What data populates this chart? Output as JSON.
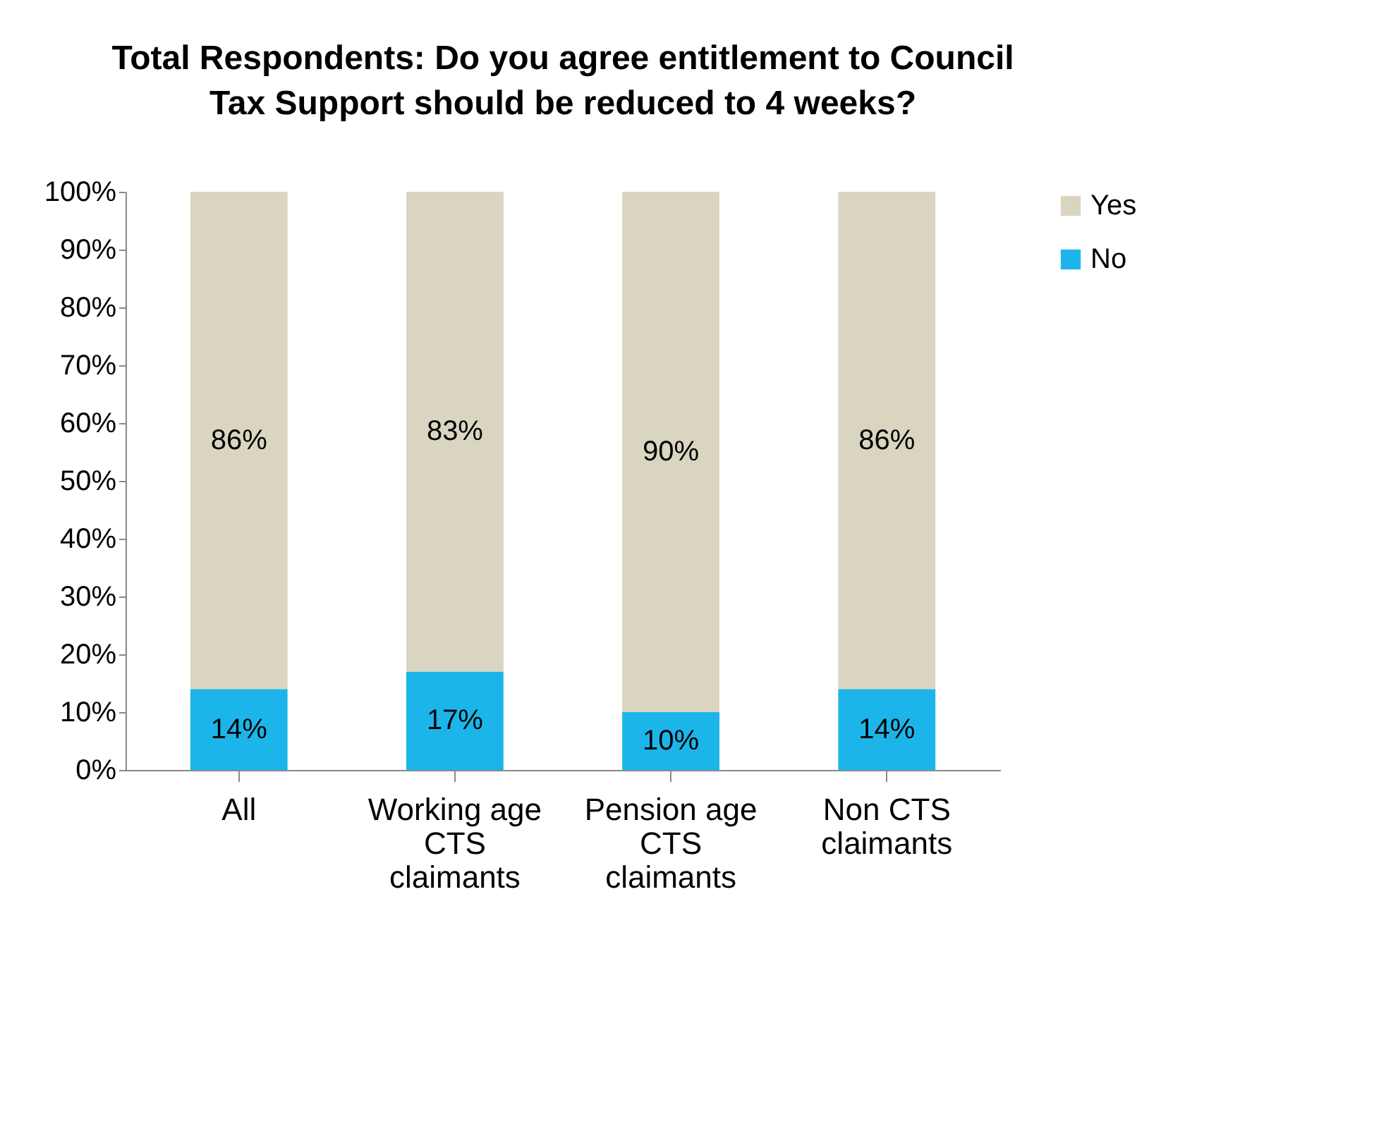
{
  "chart_data": {
    "type": "bar",
    "title": "Total Respondents: Do you agree entitlement to Council Tax Support should be reduced to 4 weeks?",
    "categories": [
      "All",
      "Working age CTS claimants",
      "Pension age CTS claimants",
      "Non CTS claimants"
    ],
    "stacked": true,
    "series": [
      {
        "name": "No",
        "color": "#1cb5ea",
        "values": [
          14,
          17,
          10,
          14
        ],
        "value_labels": [
          "14%",
          "17%",
          "10%",
          "14%"
        ]
      },
      {
        "name": "Yes",
        "color": "#d9d5c1",
        "values": [
          86,
          83,
          90,
          86
        ],
        "value_labels": [
          "86%",
          "83%",
          "90%",
          "86%"
        ]
      }
    ],
    "ylim": [
      0,
      100
    ],
    "yticks": [
      {
        "value": 0,
        "label": "0%"
      },
      {
        "value": 10,
        "label": "10%"
      },
      {
        "value": 20,
        "label": "20%"
      },
      {
        "value": 30,
        "label": "30%"
      },
      {
        "value": 40,
        "label": "40%"
      },
      {
        "value": 50,
        "label": "50%"
      },
      {
        "value": 60,
        "label": "60%"
      },
      {
        "value": 70,
        "label": "70%"
      },
      {
        "value": 80,
        "label": "80%"
      },
      {
        "value": 90,
        "label": "90%"
      },
      {
        "value": 100,
        "label": "100%"
      }
    ],
    "legend": "right"
  }
}
